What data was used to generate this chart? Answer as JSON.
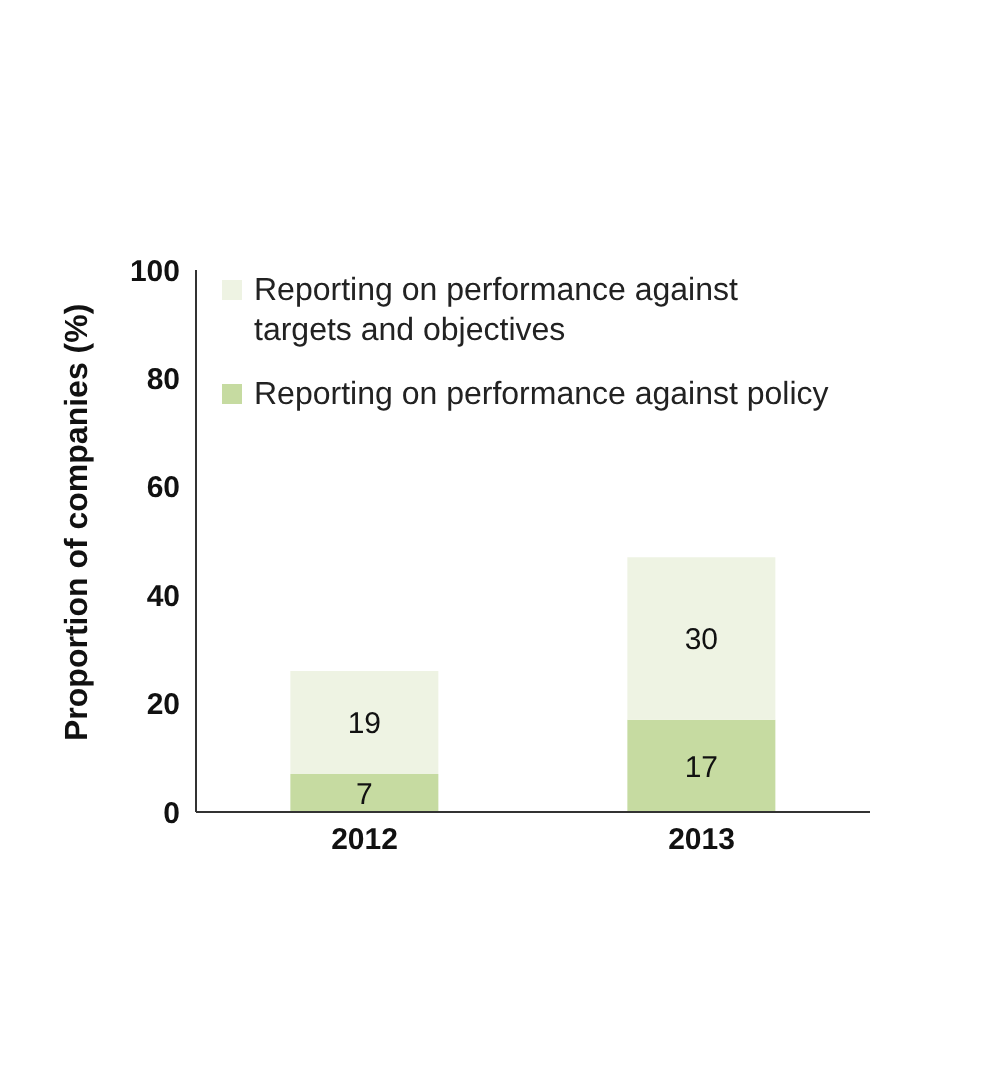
{
  "chart_data": {
    "type": "bar",
    "stacked": true,
    "categories": [
      "2012",
      "2013"
    ],
    "series": [
      {
        "name": "Reporting on performance against policy",
        "color": "#c6dba1",
        "values": [
          7,
          17
        ]
      },
      {
        "name": "Reporting on performance against targets and objectives",
        "color": "#eef3e3",
        "values": [
          19,
          30
        ]
      }
    ],
    "ylabel": "Proportion of companies (%)",
    "ylim": [
      0,
      100
    ],
    "yticks": [
      0,
      20,
      40,
      60,
      80,
      100
    ],
    "grid": false,
    "legend": "top left",
    "data_labels": true
  }
}
